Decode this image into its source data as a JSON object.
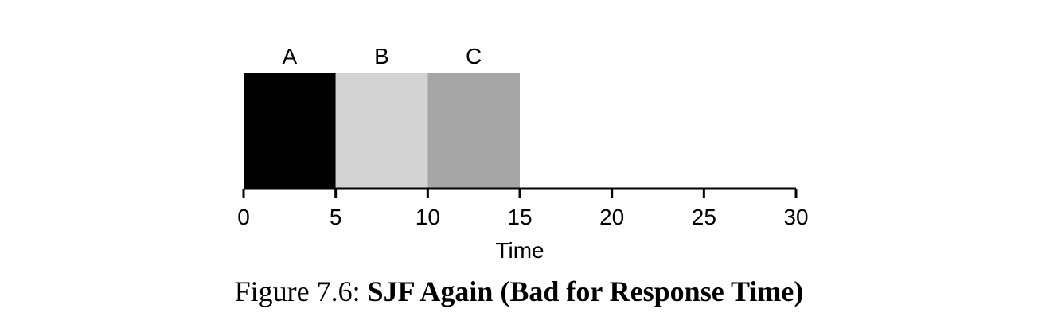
{
  "caption": {
    "prefix": "Figure 7.6: ",
    "title": "SJF Again (Bad for Response Time)"
  },
  "chart_data": {
    "type": "bar",
    "subtype": "timeline",
    "xlabel": "Time",
    "xlim": [
      0,
      30
    ],
    "xticks": [
      "0",
      "5",
      "10",
      "15",
      "20",
      "25",
      "30"
    ],
    "grid": false,
    "legend": "none",
    "segments": [
      {
        "label": "A",
        "start": 0,
        "end": 5,
        "color": "#000000"
      },
      {
        "label": "B",
        "start": 5,
        "end": 10,
        "color": "#d3d3d3"
      },
      {
        "label": "C",
        "start": 10,
        "end": 15,
        "color": "#a6a6a6"
      }
    ]
  }
}
